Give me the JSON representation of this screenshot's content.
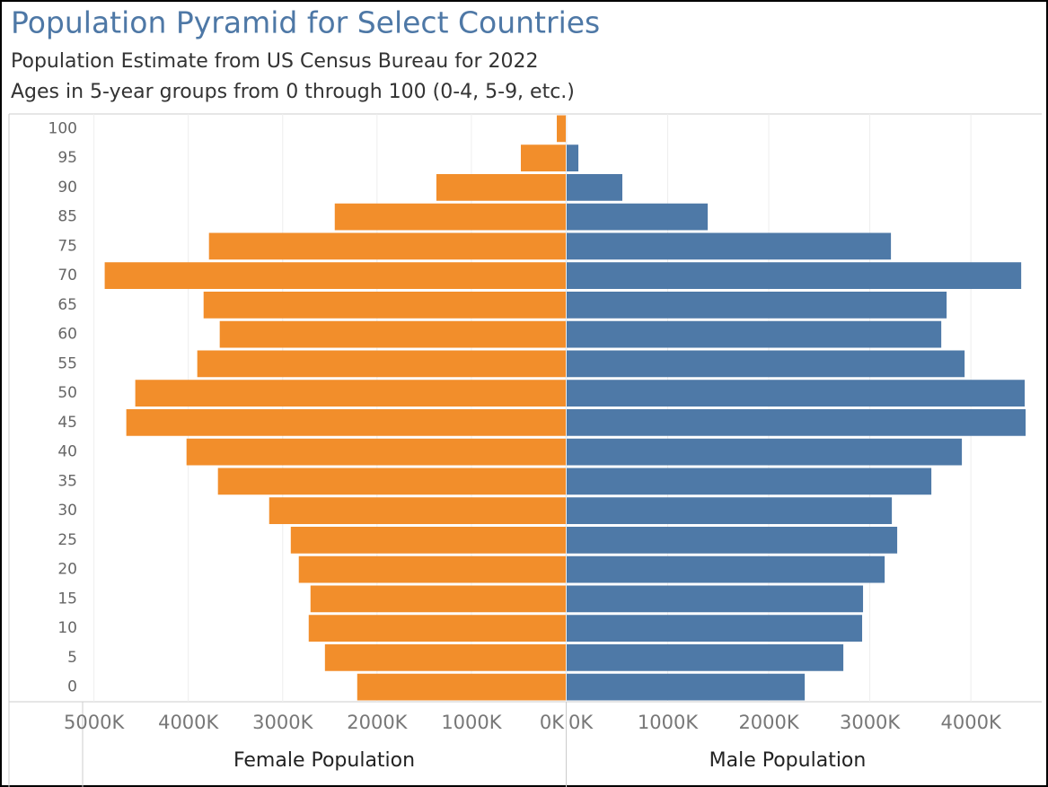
{
  "chart_data": {
    "type": "bar",
    "orientation": "horizontal",
    "title": "Population Pyramid for Select Countries",
    "subtitle": [
      "Population Estimate from US Census Bureau for 2022",
      "Ages in 5-year groups from 0 through 100 (0-4, 5-9, etc.)"
    ],
    "categories": [
      "100",
      "95",
      "90",
      "85",
      "75",
      "70",
      "65",
      "60",
      "55",
      "50",
      "45",
      "40",
      "35",
      "30",
      "25",
      "20",
      "15",
      "10",
      "5",
      "0"
    ],
    "grid": true,
    "series": [
      {
        "name": "Female Population",
        "color": "#f28e2b",
        "side": "left",
        "values": [
          95,
          476,
          1371,
          2448,
          3781,
          4886,
          3838,
          3667,
          3905,
          4562,
          4657,
          4019,
          3686,
          3143,
          2914,
          2829,
          2705,
          2724,
          2552,
          2210
        ],
        "xlim": [
          0,
          5120
        ],
        "xticks": [
          {
            "value": 0,
            "label": "0K"
          },
          {
            "value": 1000,
            "label": "1000K"
          },
          {
            "value": 2000,
            "label": "2000K"
          },
          {
            "value": 3000,
            "label": "3000K"
          },
          {
            "value": 4000,
            "label": "4000K"
          },
          {
            "value": 5000,
            "label": "5000K"
          }
        ]
      },
      {
        "name": "Male Population",
        "color": "#4e79a7",
        "side": "right",
        "values": [
          null,
          116,
          551,
          1396,
          3209,
          4498,
          3760,
          3707,
          3938,
          4533,
          4542,
          3911,
          3609,
          3218,
          3271,
          3147,
          2933,
          2924,
          2738,
          2356
        ],
        "xlim": [
          0,
          4550
        ],
        "xticks": [
          {
            "value": 0,
            "label": "0K"
          },
          {
            "value": 1000,
            "label": "1000K"
          },
          {
            "value": 2000,
            "label": "2000K"
          },
          {
            "value": 3000,
            "label": "3000K"
          },
          {
            "value": 4000,
            "label": "4000K"
          }
        ]
      }
    ]
  }
}
